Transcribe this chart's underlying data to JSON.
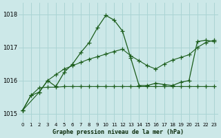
{
  "title": "Graphe pression niveau de la mer (hPa)",
  "bg_color": "#cce8e8",
  "grid_color": "#aad4d4",
  "line_color": "#1a5c1a",
  "xlim": [
    -0.5,
    23.5
  ],
  "ylim": [
    1014.75,
    1018.35
  ],
  "yticks": [
    1015,
    1016,
    1017,
    1018
  ],
  "xticks": [
    0,
    1,
    2,
    3,
    4,
    5,
    6,
    7,
    8,
    9,
    10,
    11,
    12,
    13,
    14,
    15,
    16,
    17,
    18,
    19,
    20,
    21,
    22,
    23
  ],
  "line_peaked": {
    "x": [
      0,
      1,
      2,
      3,
      4,
      5,
      6,
      7,
      8,
      9,
      10,
      11,
      12,
      13,
      14,
      15,
      16,
      17,
      18,
      19,
      20,
      21,
      22,
      23
    ],
    "y": [
      1015.1,
      1015.55,
      1015.65,
      1016.0,
      1015.82,
      1016.25,
      1016.5,
      1016.85,
      1017.15,
      1017.6,
      1017.97,
      1017.83,
      1017.5,
      1016.68,
      1015.85,
      1015.85,
      1015.92,
      1015.88,
      1015.85,
      1015.95,
      1016.0,
      1017.18,
      1017.22,
      1017.18
    ]
  },
  "line_flat": {
    "x": [
      0,
      1,
      2,
      3,
      4,
      5,
      6,
      7,
      8,
      9,
      10,
      11,
      12,
      13,
      14,
      15,
      16,
      17,
      18,
      19,
      20,
      21,
      22,
      23
    ],
    "y": [
      1015.1,
      1015.55,
      1015.78,
      1015.8,
      1015.8,
      1015.82,
      1015.82,
      1015.82,
      1015.82,
      1015.82,
      1015.82,
      1015.82,
      1015.82,
      1015.82,
      1015.82,
      1015.82,
      1015.82,
      1015.82,
      1015.82,
      1015.82,
      1015.82,
      1015.82,
      1015.82,
      1015.82
    ]
  },
  "line_diagonal": {
    "x": [
      0,
      2,
      3,
      4,
      5,
      6,
      7,
      8,
      9,
      10,
      11,
      12,
      13,
      14,
      15,
      16,
      17,
      18,
      19,
      20,
      21,
      22,
      23
    ],
    "y": [
      1015.1,
      1015.65,
      1016.0,
      1016.18,
      1016.35,
      1016.45,
      1016.55,
      1016.65,
      1016.72,
      1016.8,
      1016.88,
      1016.95,
      1016.75,
      1016.6,
      1016.45,
      1016.35,
      1016.5,
      1016.62,
      1016.7,
      1016.78,
      1017.0,
      1017.15,
      1017.22
    ]
  }
}
